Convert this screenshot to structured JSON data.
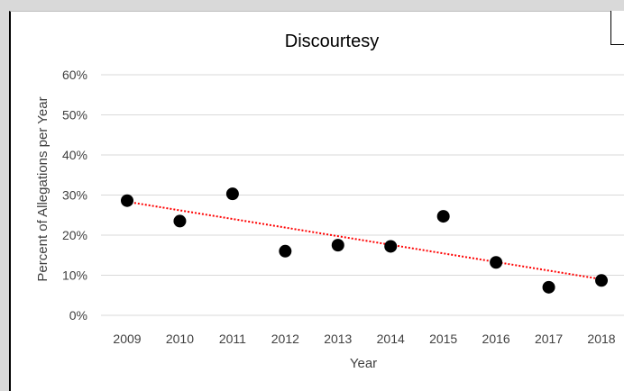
{
  "chart_data": {
    "type": "scatter",
    "title": "Discourtesy",
    "xlabel": "Year",
    "ylabel": "Percent of Allegations per Year",
    "x": [
      2009,
      2010,
      2011,
      2012,
      2013,
      2014,
      2015,
      2016,
      2017,
      2018
    ],
    "y": [
      0.286,
      0.235,
      0.303,
      0.16,
      0.175,
      0.172,
      0.247,
      0.132,
      0.07,
      0.087
    ],
    "ylim": [
      0,
      0.6
    ],
    "yticks": [
      "0%",
      "10%",
      "20%",
      "30%",
      "40%",
      "50%",
      "60%"
    ],
    "xticks": [
      "2009",
      "2010",
      "2011",
      "2012",
      "2013",
      "2014",
      "2015",
      "2016",
      "2017",
      "2018"
    ],
    "trendline": {
      "type": "linear",
      "style": "dotted",
      "color": "#ff0000"
    },
    "grid": true,
    "marker_color": "#000000",
    "legend": "none"
  }
}
